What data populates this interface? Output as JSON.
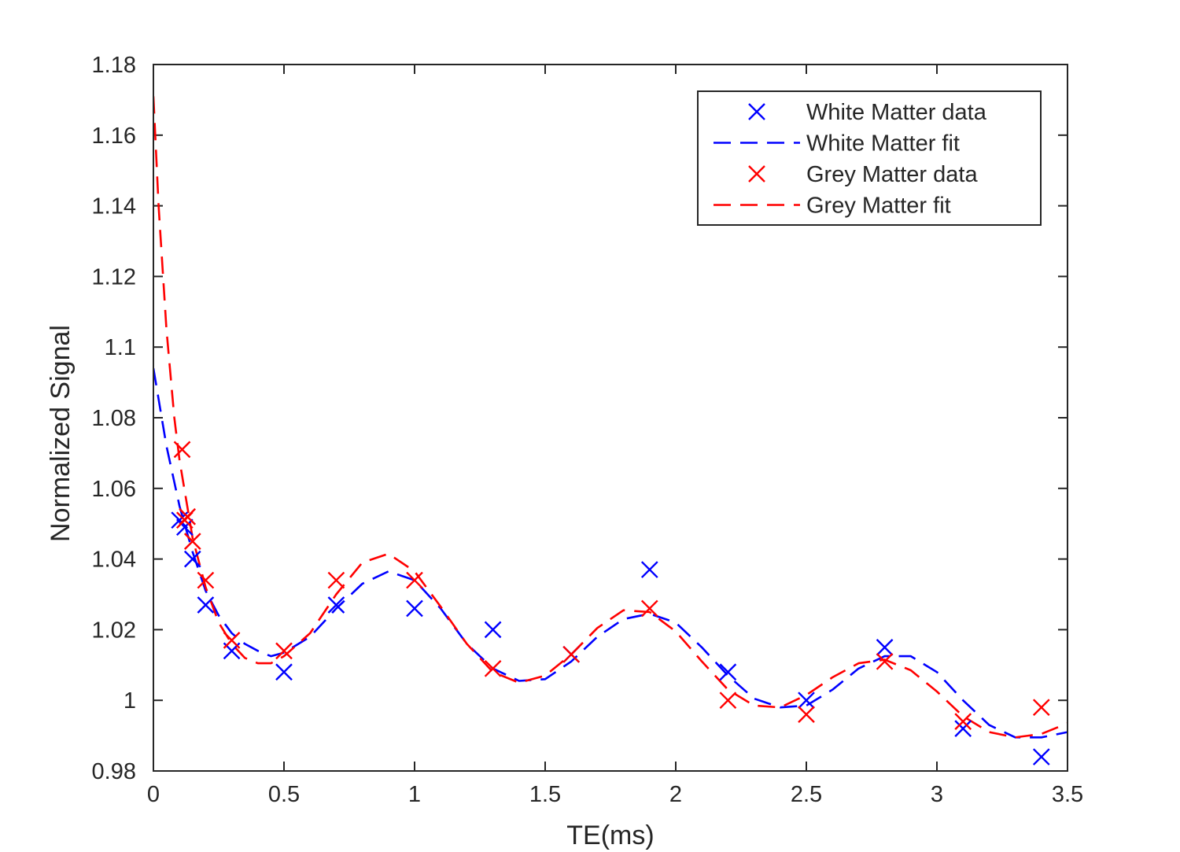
{
  "chart_data": {
    "type": "scatter",
    "title": "",
    "xlabel": "TE(ms)",
    "ylabel": "Normalized Signal",
    "xlim": [
      0,
      3.5
    ],
    "ylim": [
      0.98,
      1.18
    ],
    "xticks": [
      0,
      0.5,
      1,
      1.5,
      2,
      2.5,
      3,
      3.5
    ],
    "xtick_labels": [
      "0",
      "0.5",
      "1",
      "1.5",
      "2",
      "2.5",
      "3",
      "3.5"
    ],
    "yticks": [
      0.98,
      1.0,
      1.02,
      1.04,
      1.06,
      1.08,
      1.1,
      1.12,
      1.14,
      1.16,
      1.18
    ],
    "ytick_labels": [
      "0.98",
      "1",
      "1.02",
      "1.04",
      "1.06",
      "1.08",
      "1.1",
      "1.12",
      "1.14",
      "1.16",
      "1.18"
    ],
    "grid": false,
    "legend_position": "top-right",
    "series": [
      {
        "name": "White Matter data",
        "kind": "markers",
        "color": "#0000ff",
        "points": [
          [
            0.1,
            1.051
          ],
          [
            0.12,
            1.049
          ],
          [
            0.15,
            1.04
          ],
          [
            0.2,
            1.027
          ],
          [
            0.3,
            1.014
          ],
          [
            0.5,
            1.008
          ],
          [
            0.7,
            1.027
          ],
          [
            1.0,
            1.026
          ],
          [
            1.3,
            1.02
          ],
          [
            1.6,
            1.013
          ],
          [
            1.9,
            1.037
          ],
          [
            2.2,
            1.008
          ],
          [
            2.5,
            1.0
          ],
          [
            2.8,
            1.015
          ],
          [
            3.1,
            0.992
          ],
          [
            3.4,
            0.984
          ]
        ]
      },
      {
        "name": "White Matter fit",
        "kind": "dashed-line",
        "color": "#0000ff",
        "points": [
          [
            0.0,
            1.094
          ],
          [
            0.05,
            1.072
          ],
          [
            0.1,
            1.055
          ],
          [
            0.15,
            1.042
          ],
          [
            0.2,
            1.031
          ],
          [
            0.25,
            1.024
          ],
          [
            0.3,
            1.019
          ],
          [
            0.35,
            1.016
          ],
          [
            0.4,
            1.014
          ],
          [
            0.45,
            1.0125
          ],
          [
            0.5,
            1.0135
          ],
          [
            0.6,
            1.018
          ],
          [
            0.7,
            1.026
          ],
          [
            0.8,
            1.033
          ],
          [
            0.9,
            1.0365
          ],
          [
            1.0,
            1.034
          ],
          [
            1.1,
            1.026
          ],
          [
            1.2,
            1.016
          ],
          [
            1.3,
            1.009
          ],
          [
            1.4,
            1.0055
          ],
          [
            1.5,
            1.006
          ],
          [
            1.6,
            1.011
          ],
          [
            1.7,
            1.018
          ],
          [
            1.8,
            1.023
          ],
          [
            1.9,
            1.0245
          ],
          [
            2.0,
            1.022
          ],
          [
            2.1,
            1.015
          ],
          [
            2.2,
            1.007
          ],
          [
            2.3,
            1.0005
          ],
          [
            2.4,
            0.998
          ],
          [
            2.5,
            0.9985
          ],
          [
            2.6,
            1.003
          ],
          [
            2.7,
            1.009
          ],
          [
            2.8,
            1.0125
          ],
          [
            2.9,
            1.0125
          ],
          [
            3.0,
            1.008
          ],
          [
            3.1,
            1.0
          ],
          [
            3.2,
            0.993
          ],
          [
            3.3,
            0.9895
          ],
          [
            3.4,
            0.9895
          ],
          [
            3.5,
            0.991
          ]
        ]
      },
      {
        "name": "Grey Matter data",
        "kind": "markers",
        "color": "#ff0000",
        "points": [
          [
            0.11,
            1.071
          ],
          [
            0.12,
            1.051
          ],
          [
            0.13,
            1.052
          ],
          [
            0.15,
            1.045
          ],
          [
            0.2,
            1.034
          ],
          [
            0.3,
            1.017
          ],
          [
            0.5,
            1.014
          ],
          [
            0.7,
            1.034
          ],
          [
            1.0,
            1.034
          ],
          [
            1.3,
            1.009
          ],
          [
            1.6,
            1.013
          ],
          [
            1.9,
            1.026
          ],
          [
            2.2,
            1.0
          ],
          [
            2.5,
            0.996
          ],
          [
            2.8,
            1.011
          ],
          [
            3.1,
            0.994
          ],
          [
            3.4,
            0.998
          ]
        ]
      },
      {
        "name": "Grey Matter fit",
        "kind": "dashed-line",
        "color": "#ff0000",
        "points": [
          [
            0.0,
            1.171
          ],
          [
            0.02,
            1.14
          ],
          [
            0.05,
            1.105
          ],
          [
            0.08,
            1.08
          ],
          [
            0.1,
            1.068
          ],
          [
            0.15,
            1.046
          ],
          [
            0.2,
            1.032
          ],
          [
            0.25,
            1.022
          ],
          [
            0.3,
            1.016
          ],
          [
            0.35,
            1.012
          ],
          [
            0.4,
            1.0105
          ],
          [
            0.45,
            1.0105
          ],
          [
            0.5,
            1.0125
          ],
          [
            0.6,
            1.019
          ],
          [
            0.7,
            1.03
          ],
          [
            0.8,
            1.039
          ],
          [
            0.9,
            1.0415
          ],
          [
            1.0,
            1.0365
          ],
          [
            1.1,
            1.0265
          ],
          [
            1.2,
            1.016
          ],
          [
            1.3,
            1.008
          ],
          [
            1.4,
            1.005
          ],
          [
            1.5,
            1.007
          ],
          [
            1.6,
            1.013
          ],
          [
            1.7,
            1.0205
          ],
          [
            1.8,
            1.0255
          ],
          [
            1.9,
            1.025
          ],
          [
            2.0,
            1.0195
          ],
          [
            2.1,
            1.011
          ],
          [
            2.2,
            1.003
          ],
          [
            2.3,
            0.9985
          ],
          [
            2.4,
            0.998
          ],
          [
            2.5,
            1.0015
          ],
          [
            2.6,
            1.0065
          ],
          [
            2.7,
            1.0105
          ],
          [
            2.8,
            1.0115
          ],
          [
            2.9,
            1.0085
          ],
          [
            3.0,
            1.0025
          ],
          [
            3.1,
            0.9955
          ],
          [
            3.2,
            0.991
          ],
          [
            3.3,
            0.9895
          ],
          [
            3.4,
            0.9905
          ],
          [
            3.5,
            0.9935
          ]
        ]
      }
    ]
  }
}
